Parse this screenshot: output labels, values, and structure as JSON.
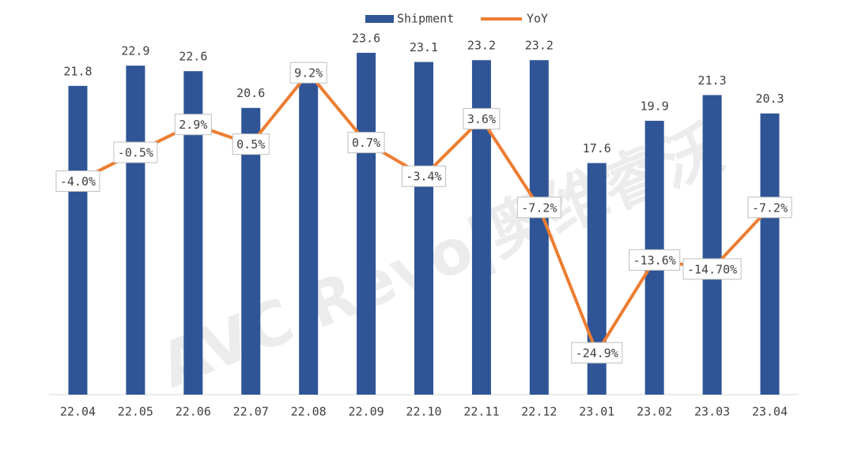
{
  "chart_data": {
    "type": "bar-line",
    "watermark": "AVC Revo|奥维睿沃",
    "categories": [
      "22.04",
      "22.05",
      "22.06",
      "22.07",
      "22.08",
      "22.09",
      "22.10",
      "22.11",
      "22.12",
      "23.01",
      "23.02",
      "23.03",
      "23.04"
    ],
    "series": [
      {
        "name": "Shipment",
        "type": "bar",
        "color": "#2f5597",
        "values": [
          21.8,
          22.9,
          22.6,
          20.6,
          22.0,
          23.6,
          23.1,
          23.2,
          23.2,
          17.6,
          19.9,
          21.3,
          20.3
        ],
        "value_labels": [
          "21.8",
          "22.9",
          "22.6",
          "20.6",
          null,
          "23.6",
          "23.1",
          "23.2",
          "23.2",
          "17.6",
          "19.9",
          "21.3",
          "20.3"
        ]
      },
      {
        "name": "YoY",
        "type": "line",
        "axis": "y2",
        "color": "#ed7d31",
        "values": [
          -4.0,
          -0.5,
          2.9,
          0.5,
          9.2,
          0.7,
          -3.4,
          3.6,
          -7.2,
          -24.9,
          -13.6,
          -14.7,
          -7.2
        ],
        "value_labels": [
          "-4.0%",
          "-0.5%",
          "2.9%",
          "0.5%",
          "9.2%",
          "0.7%",
          "-3.4%",
          "3.6%",
          "-7.2%",
          "-24.9%",
          "-13.6%",
          "-14.70%",
          "-7.2%"
        ]
      }
    ],
    "ylim": [
      5,
      26
    ],
    "y2lim": [
      -30,
      17
    ],
    "legend": "top"
  }
}
